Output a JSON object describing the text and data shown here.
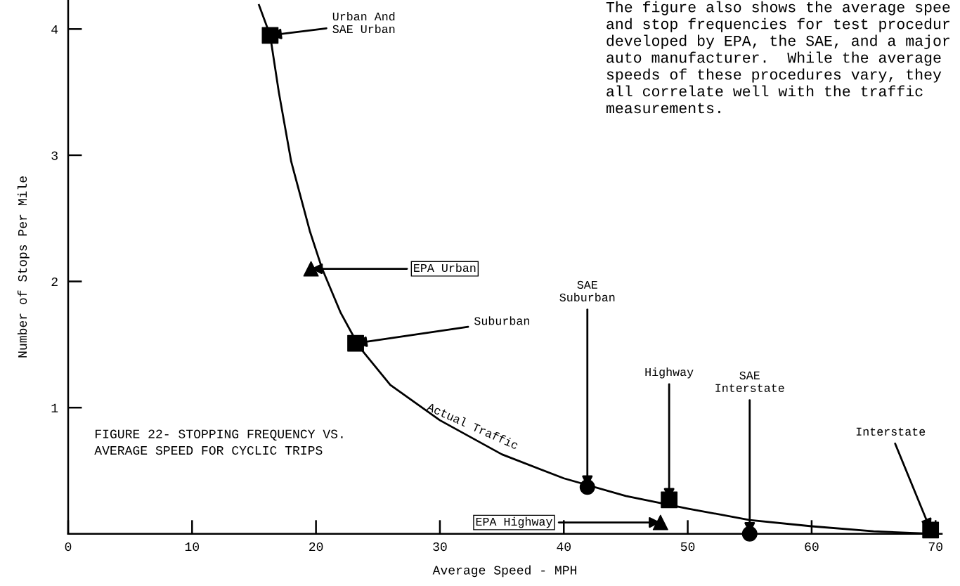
{
  "chart_data": {
    "type": "scatter",
    "title": "FIGURE 22- STOPPING FREQUENCY VS.\nAVERAGE SPEED FOR CYCLIC TRIPS",
    "xlabel": "Average Speed - MPH",
    "ylabel": "Number of Stops Per Mile",
    "xlim": [
      0,
      70.5
    ],
    "ylim": [
      0,
      4.23
    ],
    "xticks": [
      0,
      10,
      20,
      30,
      40,
      50,
      60,
      70
    ],
    "yticks": [
      1,
      2,
      3,
      4
    ],
    "grid": false,
    "legend": false,
    "series": [
      {
        "name": "Actual Traffic",
        "type": "line",
        "color": "#000000",
        "marker": "none",
        "line_style": "solid",
        "x": [
          15.4,
          16.3,
          17,
          18,
          19.5,
          20.5,
          22,
          23.5,
          26,
          30,
          35,
          40,
          45,
          50,
          55,
          60,
          65,
          70
        ],
        "values": [
          4.19,
          3.95,
          3.5,
          2.95,
          2.4,
          2.1,
          1.75,
          1.48,
          1.18,
          0.9,
          0.63,
          0.44,
          0.3,
          0.2,
          0.11,
          0.06,
          0.02,
          0
        ]
      },
      {
        "type": "scatter",
        "color": "#000000",
        "marker": "square",
        "x": [
          16.3,
          23.2,
          48.5,
          69.6
        ],
        "values": [
          3.95,
          1.51,
          0.27,
          0.03
        ]
      },
      {
        "type": "scatter",
        "color": "#000000",
        "marker": "triangle",
        "x": [
          19.6,
          47.8
        ],
        "values": [
          2.1,
          0.09
        ]
      },
      {
        "type": "scatter",
        "color": "#000000",
        "marker": "circle",
        "x": [
          41.9,
          55.0
        ],
        "values": [
          0.37,
          0
        ]
      }
    ],
    "annotations": [
      {
        "text": "Urban And\nSAE Urban",
        "x": 16.3,
        "y": 3.95
      },
      {
        "text": "EPA Urban",
        "x": 19.6,
        "y": 2.1
      },
      {
        "text": "Suburban",
        "x": 23.2,
        "y": 1.51
      },
      {
        "text": "SAE\nSuburban",
        "x": 41.9,
        "y": 0.37
      },
      {
        "text": "Highway",
        "x": 48.5,
        "y": 0.27
      },
      {
        "text": "SAE\nInterstate",
        "x": 55.0,
        "y": 0
      },
      {
        "text": "Interstate",
        "x": 69.6,
        "y": 0.03
      },
      {
        "text": "EPA Highway",
        "x": 47.8,
        "y": 0.09
      },
      "The figure also shows the average spee\nand stop frequencies for test procedur\ndeveloped by EPA, the SAE, and a major\nauto manufacturer.  While the average\nspeeds of these procedures vary, they\nall correlate well with the traffic\nmeasurements."
    ]
  }
}
